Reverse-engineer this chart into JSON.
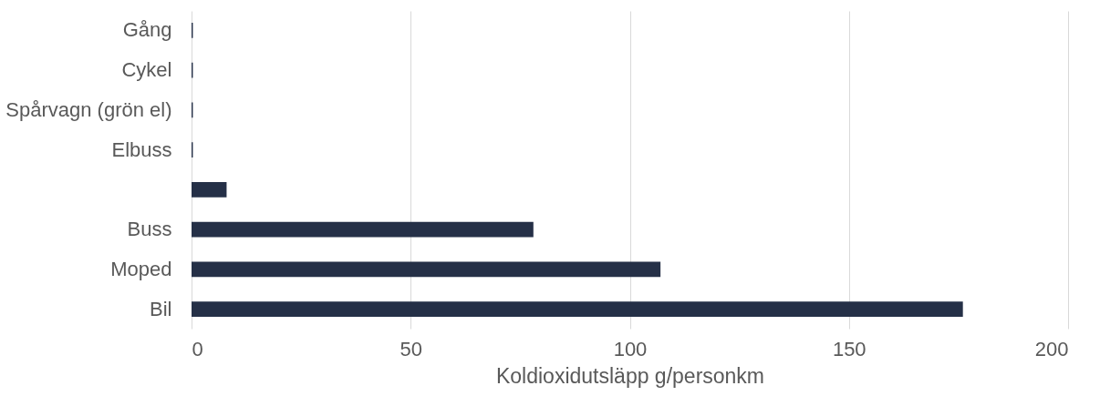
{
  "chart_data": {
    "type": "bar",
    "orientation": "horizontal",
    "categories": [
      "Gång",
      "Cykel",
      "Spårvagn (grön el)",
      "Elbuss",
      null,
      "Buss",
      "Moped",
      "Bil"
    ],
    "values": [
      0.3,
      0.3,
      0.3,
      0.3,
      8,
      78,
      107,
      176
    ],
    "color": "#253047",
    "xlabel": "Koldioxidutsläpp g/personkm",
    "xlim": [
      0,
      200
    ],
    "xticks": [
      0,
      50,
      100,
      150,
      200
    ],
    "grid": "x"
  }
}
